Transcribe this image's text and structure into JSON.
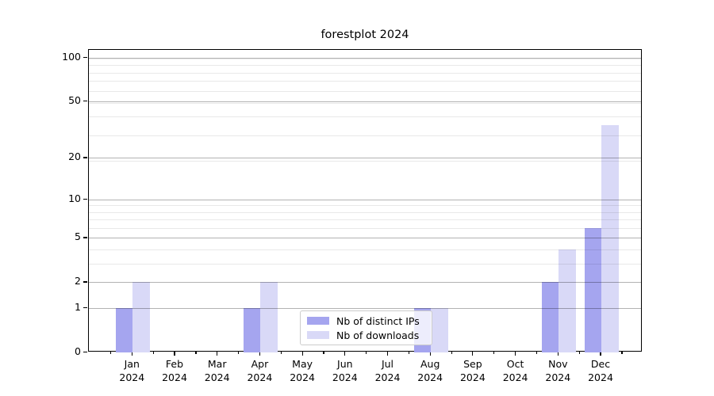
{
  "chart_data": {
    "type": "bar",
    "title": "forestplot 2024",
    "categories": [
      "Jan",
      "Feb",
      "Mar",
      "Apr",
      "May",
      "Jun",
      "Jul",
      "Aug",
      "Sep",
      "Oct",
      "Nov",
      "Dec"
    ],
    "year_label": "2024",
    "series": [
      {
        "name": "Nb of distinct IPs",
        "color": "#a5a5ef",
        "values": [
          1,
          0,
          0,
          1,
          0,
          0,
          0,
          1,
          0,
          0,
          2,
          6
        ]
      },
      {
        "name": "Nb of downloads",
        "color": "#d9d9f7",
        "values": [
          2,
          0,
          0,
          2,
          0,
          0,
          0,
          1,
          0,
          0,
          4,
          34
        ]
      }
    ],
    "xlabel": "",
    "ylabel": "",
    "y_scale": "log10(1+v)",
    "y_ticks": [
      0,
      1,
      2,
      5,
      10,
      20,
      50,
      100
    ],
    "y_minor_gridlines_plus1": [
      4,
      5,
      7,
      8,
      9,
      10,
      20,
      30,
      40,
      50,
      60,
      70,
      80,
      90,
      100
    ],
    "ylim": [
      0,
      113
    ],
    "grid": "horizontal major and minor, drawn above bars",
    "legend_position": "lower center"
  },
  "colors": {
    "bar_dark": "#a5a5ef",
    "bar_light": "#d9d9f7",
    "grid_major": "#b2b2b2",
    "grid_minor": "#e9e9e9",
    "spine": "#000000",
    "legend_border": "#cccccc"
  }
}
